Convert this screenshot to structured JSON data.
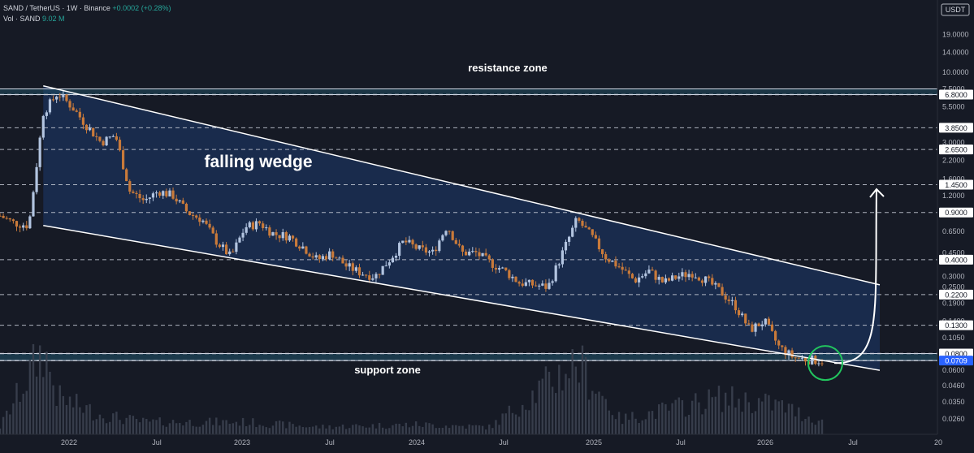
{
  "header": {
    "symbol_line": "SAND / TetherUS · 1W · Binance",
    "change_text": "+0.0002 (+0.28%)",
    "volume_label": "Vol · SAND",
    "volume_value": "9.02 M"
  },
  "currency_label": "USDT",
  "annotations": {
    "resistance": "resistance zone",
    "support": "support zone",
    "pattern": "falling wedge"
  },
  "price_axis": {
    "ticks": [
      "19.0000",
      "14.0000",
      "10.0000",
      "7.5000",
      "5.5000",
      "3.0000",
      "2.2000",
      "1.6000",
      "1.2000",
      "0.6500",
      "0.4500",
      "0.3000",
      "0.2500",
      "0.1900",
      "0.1400",
      "0.1050",
      "0.0600",
      "0.0460",
      "0.0350",
      "0.0260"
    ],
    "badges": [
      "6.8000",
      "3.8500",
      "2.6500",
      "1.4500",
      "0.9000",
      "0.4000",
      "0.2200",
      "0.1300",
      "0.0800"
    ],
    "current_price": "0.0709"
  },
  "time_axis": [
    "2022",
    "Jul",
    "2023",
    "Jul",
    "2024",
    "Jul",
    "2025",
    "Jul",
    "2026",
    "Jul",
    "20"
  ],
  "colors": {
    "background": "#161a25",
    "wedge_fill": "#1e3a6e",
    "zone_fill": "#1f4f66",
    "up_candle": "#b2c4e0",
    "down_candle": "#c97a3a",
    "volume_bar": "#3b4150",
    "target_circle": "#22c55e"
  },
  "chart_data": {
    "type": "candlestick",
    "title": "SAND / TetherUS · 1W · Binance",
    "scale": "log",
    "ylim": [
      0.025,
      23
    ],
    "xlim": [
      "2021-08",
      "2027-01"
    ],
    "resistance_zone": [
      6.8,
      7.5
    ],
    "support_zone": [
      0.0709,
      0.08
    ],
    "horizontal_levels": [
      6.8,
      3.85,
      2.65,
      1.45,
      0.9,
      0.4,
      0.22,
      0.13,
      0.08,
      0.0709
    ],
    "wedge": {
      "upper_line": [
        [
          "2021-11",
          7.9
        ],
        [
          "2026-09",
          0.26
        ]
      ],
      "lower_line": [
        [
          "2021-11",
          0.72
        ],
        [
          "2026-09",
          0.06
        ]
      ]
    },
    "projection": {
      "start": [
        "2026-05",
        0.068
      ],
      "end": [
        "2026-09",
        1.5
      ]
    },
    "price_path": [
      [
        "2021-08",
        0.85
      ],
      [
        "2021-09",
        0.75
      ],
      [
        "2021-10",
        0.72
      ],
      [
        "2021-11",
        5.0
      ],
      [
        "2021-12",
        7.0
      ],
      [
        "2022-01",
        5.5
      ],
      [
        "2022-02",
        4.0
      ],
      [
        "2022-03",
        3.0
      ],
      [
        "2022-04",
        3.4
      ],
      [
        "2022-05",
        1.3
      ],
      [
        "2022-06",
        1.1
      ],
      [
        "2022-07",
        1.3
      ],
      [
        "2022-08",
        1.2
      ],
      [
        "2022-09",
        0.9
      ],
      [
        "2022-10",
        0.8
      ],
      [
        "2022-11",
        0.55
      ],
      [
        "2022-12",
        0.42
      ],
      [
        "2023-01",
        0.7
      ],
      [
        "2023-02",
        0.75
      ],
      [
        "2023-03",
        0.62
      ],
      [
        "2023-04",
        0.6
      ],
      [
        "2023-05",
        0.5
      ],
      [
        "2023-06",
        0.4
      ],
      [
        "2023-07",
        0.45
      ],
      [
        "2023-08",
        0.36
      ],
      [
        "2023-09",
        0.32
      ],
      [
        "2023-10",
        0.3
      ],
      [
        "2023-11",
        0.4
      ],
      [
        "2023-12",
        0.55
      ],
      [
        "2024-01",
        0.48
      ],
      [
        "2024-02",
        0.45
      ],
      [
        "2024-03",
        0.72
      ],
      [
        "2024-04",
        0.45
      ],
      [
        "2024-05",
        0.45
      ],
      [
        "2024-06",
        0.38
      ],
      [
        "2024-07",
        0.33
      ],
      [
        "2024-08",
        0.27
      ],
      [
        "2024-09",
        0.26
      ],
      [
        "2024-10",
        0.25
      ],
      [
        "2024-11",
        0.45
      ],
      [
        "2024-12",
        0.8
      ],
      [
        "2025-01",
        0.6
      ],
      [
        "2025-02",
        0.42
      ],
      [
        "2025-03",
        0.35
      ],
      [
        "2025-04",
        0.28
      ],
      [
        "2025-05",
        0.33
      ],
      [
        "2025-06",
        0.27
      ],
      [
        "2025-07",
        0.3
      ],
      [
        "2025-08",
        0.32
      ],
      [
        "2025-09",
        0.28
      ],
      [
        "2025-10",
        0.23
      ],
      [
        "2025-11",
        0.18
      ],
      [
        "2025-12",
        0.12
      ],
      [
        "2026-01",
        0.14
      ],
      [
        "2026-02",
        0.09
      ],
      [
        "2026-03",
        0.075
      ],
      [
        "2026-04",
        0.072
      ],
      [
        "2026-05",
        0.071
      ]
    ],
    "volume_path": [
      [
        "2021-08",
        0.03
      ],
      [
        "2021-11",
        0.35
      ],
      [
        "2021-12",
        0.15
      ],
      [
        "2022-03",
        0.08
      ],
      [
        "2022-06",
        0.05
      ],
      [
        "2023-01",
        0.05
      ],
      [
        "2023-06",
        0.03
      ],
      [
        "2024-01",
        0.04
      ],
      [
        "2024-06",
        0.03
      ],
      [
        "2024-12",
        0.3
      ],
      [
        "2025-03",
        0.06
      ],
      [
        "2025-10",
        0.15
      ],
      [
        "2026-02",
        0.12
      ],
      [
        "2026-05",
        0.05
      ]
    ]
  }
}
